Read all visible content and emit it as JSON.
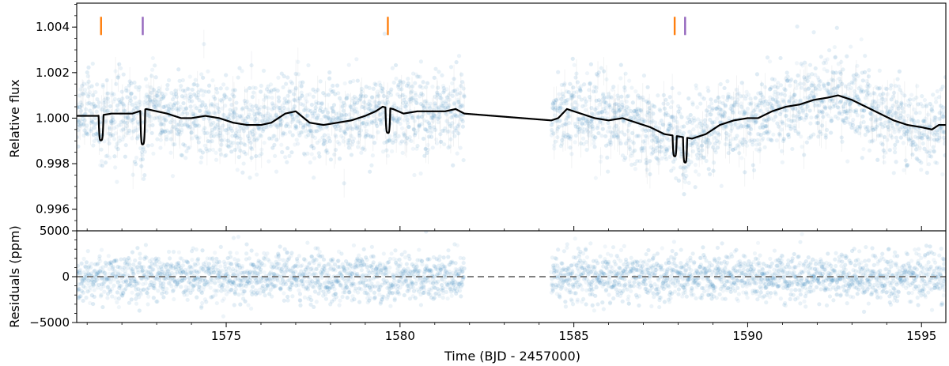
{
  "chart_data": {
    "type": "scatter",
    "xlabel": "Time (BJD - 2457000)",
    "xlim": [
      1570.7,
      1595.7
    ],
    "xticks": [
      1575,
      1580,
      1585,
      1590,
      1595
    ],
    "xtick_labels": [
      "1575",
      "1580",
      "1585",
      "1590",
      "1595"
    ],
    "gap": [
      1581.85,
      1584.35
    ],
    "panels": [
      {
        "name": "flux-panel",
        "ylabel": "Relative flux",
        "ylim": [
          0.99505,
          1.00505
        ],
        "yticks": [
          0.996,
          0.998,
          1.0,
          1.002,
          1.004
        ],
        "ytick_labels": [
          "0.996",
          "0.998",
          "1.000",
          "1.002",
          "1.004"
        ],
        "point_color": "#1f77b4",
        "point_scatter": 0.0009,
        "model_color": "#000000",
        "model_line": {
          "x": [
            1570.7,
            1571.0,
            1571.3,
            1571.7,
            1572.0,
            1572.3,
            1572.7,
            1573.0,
            1573.3,
            1573.7,
            1574.0,
            1574.4,
            1574.8,
            1575.2,
            1575.6,
            1576.0,
            1576.3,
            1576.7,
            1577.0,
            1577.4,
            1577.8,
            1578.2,
            1578.6,
            1579.0,
            1579.3,
            1579.5,
            1579.8,
            1580.1,
            1580.5,
            1580.9,
            1581.3,
            1581.6,
            1581.85,
            1584.35,
            1584.55,
            1584.8,
            1585.2,
            1585.6,
            1586.0,
            1586.4,
            1586.8,
            1587.2,
            1587.6,
            1588.0,
            1588.4,
            1588.8,
            1589.2,
            1589.6,
            1590.0,
            1590.3,
            1590.7,
            1591.1,
            1591.5,
            1591.9,
            1592.3,
            1592.6,
            1593.0,
            1593.4,
            1593.8,
            1594.2,
            1594.6,
            1595.0,
            1595.3,
            1595.5,
            1595.7
          ],
          "y": [
            1.0001,
            1.0001,
            1.0001,
            1.0002,
            1.0002,
            1.0002,
            1.0004,
            1.0003,
            1.0002,
            1.0,
            1.0,
            1.0001,
            1.0,
            0.9998,
            0.9997,
            0.9997,
            0.9998,
            1.0002,
            1.0003,
            0.9998,
            0.9997,
            0.9998,
            0.9999,
            1.0001,
            1.0003,
            1.0005,
            1.0004,
            1.0002,
            1.0003,
            1.0003,
            1.0003,
            1.0004,
            1.0002,
            0.9999,
            1.0,
            1.0004,
            1.0002,
            1.0,
            0.9999,
            1.0,
            0.9998,
            0.9996,
            0.9993,
            0.9992,
            0.9991,
            0.9993,
            0.9997,
            0.9999,
            1.0,
            1.0,
            1.0003,
            1.0005,
            1.0006,
            1.0008,
            1.0009,
            1.001,
            1.0008,
            1.0005,
            1.0002,
            0.9999,
            0.9997,
            0.9996,
            0.9995,
            0.9997,
            0.9997
          ]
        },
        "transits": [
          {
            "x": 1571.4,
            "depth": 0.0011,
            "width": 0.07
          },
          {
            "x": 1572.6,
            "depth": 0.0015,
            "width": 0.07
          },
          {
            "x": 1579.65,
            "depth": 0.0011,
            "width": 0.07
          },
          {
            "x": 1587.9,
            "depth": 0.0009,
            "width": 0.06
          },
          {
            "x": 1588.2,
            "depth": 0.0011,
            "width": 0.06
          }
        ],
        "markers": [
          {
            "x": 1571.4,
            "color": "#ff7f0e"
          },
          {
            "x": 1572.6,
            "color": "#9467bd"
          },
          {
            "x": 1579.65,
            "color": "#ff7f0e"
          },
          {
            "x": 1587.9,
            "color": "#ff7f0e"
          },
          {
            "x": 1588.2,
            "color": "#9467bd"
          }
        ],
        "marker_y": [
          1.00365,
          1.00445
        ]
      },
      {
        "name": "residuals-panel",
        "ylabel": "Residuals (ppm)",
        "ylim": [
          -5000,
          5000
        ],
        "yticks": [
          -5000,
          0,
          5000
        ],
        "ytick_labels": [
          "−5000",
          "0",
          "5000"
        ],
        "point_color": "#1f77b4",
        "point_scatter": 1300,
        "zero_line": {
          "y": 0,
          "color": "#808080",
          "style": "dashed"
        }
      }
    ],
    "grid": false,
    "legend": "none"
  }
}
